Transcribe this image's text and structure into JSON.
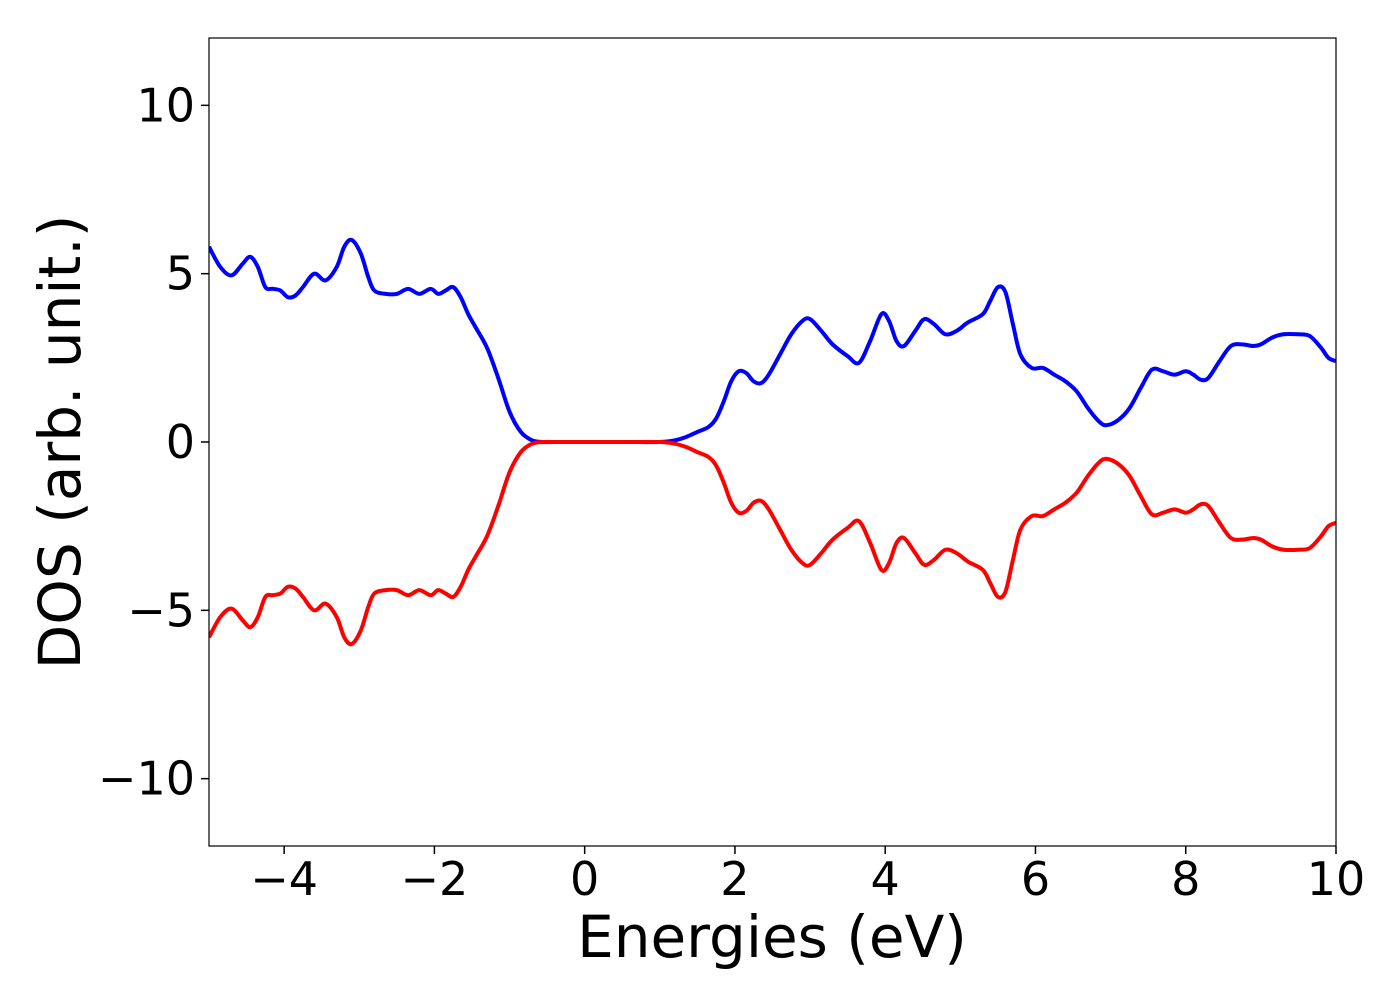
{
  "chart_data": {
    "type": "line",
    "title": "",
    "xlabel": "Energies (eV)",
    "ylabel": "DOS (arb. unit.)",
    "xlim": [
      -5,
      10
    ],
    "ylim": [
      -12,
      12
    ],
    "grid": false,
    "x_ticks": [
      -4,
      -2,
      0,
      2,
      4,
      6,
      8,
      10
    ],
    "x_tick_labels": [
      "−4",
      "−2",
      "0",
      "2",
      "4",
      "6",
      "8",
      "10"
    ],
    "y_ticks": [
      10,
      5,
      0,
      -5,
      -10
    ],
    "y_tick_labels": [
      "10",
      "5",
      "0",
      "−5",
      "−10"
    ],
    "series": [
      {
        "color": "#0000ff",
        "x": [
          -5.0,
          -4.85,
          -4.7,
          -4.55,
          -4.45,
          -4.35,
          -4.25,
          -4.15,
          -4.05,
          -3.95,
          -3.85,
          -3.75,
          -3.6,
          -3.45,
          -3.3,
          -3.2,
          -3.1,
          -2.98,
          -2.88,
          -2.8,
          -2.65,
          -2.5,
          -2.35,
          -2.2,
          -2.05,
          -1.95,
          -1.85,
          -1.75,
          -1.65,
          -1.55,
          -1.45,
          -1.3,
          -1.15,
          -1.0,
          -0.85,
          -0.7,
          -0.55,
          -0.4,
          0.0,
          0.5,
          1.0,
          1.2,
          1.35,
          1.5,
          1.65,
          1.75,
          1.85,
          1.95,
          2.05,
          2.15,
          2.25,
          2.35,
          2.45,
          2.6,
          2.75,
          2.9,
          3.0,
          3.15,
          3.3,
          3.5,
          3.65,
          3.8,
          3.95,
          4.05,
          4.15,
          4.25,
          4.4,
          4.52,
          4.65,
          4.8,
          4.95,
          5.1,
          5.3,
          5.4,
          5.5,
          5.6,
          5.7,
          5.8,
          5.95,
          6.1,
          6.25,
          6.4,
          6.55,
          6.7,
          6.85,
          6.95,
          7.1,
          7.25,
          7.4,
          7.55,
          7.7,
          7.85,
          8.0,
          8.1,
          8.2,
          8.3,
          8.45,
          8.6,
          8.75,
          8.9,
          9.0,
          9.15,
          9.3,
          9.5,
          9.65,
          9.8,
          9.9,
          10.0
        ],
        "y": [
          5.8,
          5.2,
          4.95,
          5.3,
          5.5,
          5.2,
          4.6,
          4.55,
          4.5,
          4.3,
          4.35,
          4.6,
          5.0,
          4.8,
          5.2,
          5.8,
          6.0,
          5.6,
          4.9,
          4.5,
          4.4,
          4.4,
          4.55,
          4.4,
          4.55,
          4.4,
          4.5,
          4.6,
          4.3,
          3.8,
          3.4,
          2.8,
          1.9,
          0.9,
          0.3,
          0.05,
          0.0,
          0.0,
          0.0,
          0.0,
          0.0,
          0.05,
          0.15,
          0.3,
          0.45,
          0.7,
          1.2,
          1.8,
          2.1,
          2.05,
          1.8,
          1.75,
          2.0,
          2.6,
          3.2,
          3.6,
          3.65,
          3.3,
          2.9,
          2.55,
          2.35,
          3.0,
          3.8,
          3.6,
          3.0,
          2.85,
          3.3,
          3.65,
          3.5,
          3.2,
          3.3,
          3.55,
          3.8,
          4.2,
          4.6,
          4.45,
          3.5,
          2.6,
          2.2,
          2.2,
          2.0,
          1.8,
          1.5,
          1.0,
          0.6,
          0.5,
          0.65,
          1.0,
          1.6,
          2.15,
          2.1,
          2.0,
          2.1,
          2.0,
          1.85,
          1.9,
          2.4,
          2.85,
          2.9,
          2.85,
          2.9,
          3.1,
          3.2,
          3.2,
          3.15,
          2.8,
          2.5,
          2.4
        ]
      },
      {
        "color": "#ff0000",
        "x": [
          -5.0,
          -4.85,
          -4.7,
          -4.55,
          -4.45,
          -4.35,
          -4.25,
          -4.15,
          -4.05,
          -3.95,
          -3.85,
          -3.75,
          -3.6,
          -3.45,
          -3.3,
          -3.2,
          -3.1,
          -2.98,
          -2.88,
          -2.8,
          -2.65,
          -2.5,
          -2.35,
          -2.2,
          -2.05,
          -1.95,
          -1.85,
          -1.75,
          -1.65,
          -1.55,
          -1.45,
          -1.3,
          -1.15,
          -1.0,
          -0.85,
          -0.7,
          -0.55,
          -0.4,
          0.0,
          0.5,
          1.0,
          1.2,
          1.35,
          1.5,
          1.65,
          1.75,
          1.85,
          1.95,
          2.05,
          2.15,
          2.25,
          2.35,
          2.45,
          2.6,
          2.75,
          2.9,
          3.0,
          3.15,
          3.3,
          3.5,
          3.65,
          3.8,
          3.95,
          4.05,
          4.15,
          4.25,
          4.4,
          4.52,
          4.65,
          4.8,
          4.95,
          5.1,
          5.3,
          5.4,
          5.5,
          5.6,
          5.7,
          5.8,
          5.95,
          6.1,
          6.25,
          6.4,
          6.55,
          6.7,
          6.85,
          6.95,
          7.1,
          7.25,
          7.4,
          7.55,
          7.7,
          7.85,
          8.0,
          8.1,
          8.2,
          8.3,
          8.45,
          8.6,
          8.75,
          8.9,
          9.0,
          9.15,
          9.3,
          9.5,
          9.65,
          9.8,
          9.9,
          10.0
        ],
        "y": [
          -5.8,
          -5.2,
          -4.95,
          -5.3,
          -5.5,
          -5.2,
          -4.6,
          -4.55,
          -4.5,
          -4.3,
          -4.35,
          -4.6,
          -5.0,
          -4.8,
          -5.2,
          -5.8,
          -6.0,
          -5.6,
          -4.9,
          -4.5,
          -4.4,
          -4.4,
          -4.55,
          -4.4,
          -4.55,
          -4.4,
          -4.5,
          -4.6,
          -4.3,
          -3.8,
          -3.4,
          -2.8,
          -1.9,
          -0.9,
          -0.3,
          -0.05,
          0.0,
          0.0,
          0.0,
          0.0,
          0.0,
          -0.05,
          -0.15,
          -0.3,
          -0.45,
          -0.7,
          -1.2,
          -1.8,
          -2.1,
          -2.05,
          -1.8,
          -1.75,
          -2.0,
          -2.6,
          -3.2,
          -3.6,
          -3.65,
          -3.3,
          -2.9,
          -2.55,
          -2.35,
          -3.0,
          -3.8,
          -3.6,
          -3.0,
          -2.85,
          -3.3,
          -3.65,
          -3.5,
          -3.2,
          -3.3,
          -3.55,
          -3.8,
          -4.2,
          -4.6,
          -4.45,
          -3.5,
          -2.6,
          -2.2,
          -2.2,
          -2.0,
          -1.8,
          -1.5,
          -1.0,
          -0.6,
          -0.5,
          -0.65,
          -1.0,
          -1.6,
          -2.15,
          -2.1,
          -2.0,
          -2.1,
          -2.0,
          -1.85,
          -1.9,
          -2.4,
          -2.85,
          -2.9,
          -2.85,
          -2.9,
          -3.1,
          -3.2,
          -3.2,
          -3.15,
          -2.8,
          -2.5,
          -2.4
        ]
      }
    ]
  }
}
